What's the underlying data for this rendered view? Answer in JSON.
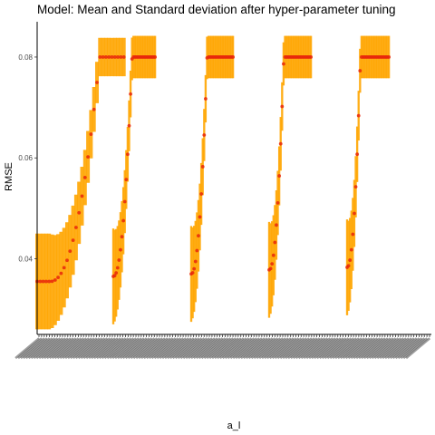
{
  "chart_data": {
    "type": "scatter",
    "title": "Model: Mean and Standard deviation after hyper-parameter tuning",
    "xlabel": "a_l",
    "ylabel": "RMSE",
    "ylim": [
      0.025,
      0.087
    ],
    "yticks": [
      0.04,
      0.06,
      0.08
    ],
    "ytick_labels": [
      "0.04",
      "0.06",
      "0.08"
    ],
    "grid": false,
    "legend": "none",
    "colors": {
      "point": "#e8260c",
      "errorbar": "#ffa500",
      "axis": "#000000"
    },
    "groups": [
      {
        "n": 30,
        "x_span": 0.22,
        "head_flat": 0.15,
        "head_mean": 0.0355,
        "head_sd": 0.0095,
        "tail_start": 0.72,
        "tail_sd": 0.0038,
        "tail_band": 0.0038,
        "mean_min": 0.0355,
        "mean_max": 0.08
      },
      {
        "n": 30,
        "x_span": 0.106,
        "head_flat": 0.0,
        "head_mean": 0.0365,
        "head_sd": 0.0095,
        "tail_start": 0.45,
        "tail_sd": 0.0042,
        "tail_band": 0.0,
        "mean_min": 0.0365,
        "mean_max": 0.08
      },
      {
        "n": 30,
        "x_span": 0.106,
        "head_flat": 0.0,
        "head_mean": 0.037,
        "head_sd": 0.0095,
        "tail_start": 0.38,
        "tail_sd": 0.0042,
        "tail_band": 0.0,
        "mean_min": 0.037,
        "mean_max": 0.08
      },
      {
        "n": 30,
        "x_span": 0.106,
        "head_flat": 0.0,
        "head_mean": 0.0378,
        "head_sd": 0.0095,
        "tail_start": 0.35,
        "tail_sd": 0.0042,
        "tail_band": 0.0,
        "mean_min": 0.0378,
        "mean_max": 0.08
      },
      {
        "n": 30,
        "x_span": 0.106,
        "head_flat": 0.0,
        "head_mean": 0.0383,
        "head_sd": 0.0095,
        "tail_start": 0.32,
        "tail_sd": 0.0042,
        "tail_band": 0.0,
        "mean_min": 0.0383,
        "mean_max": 0.08
      }
    ]
  }
}
